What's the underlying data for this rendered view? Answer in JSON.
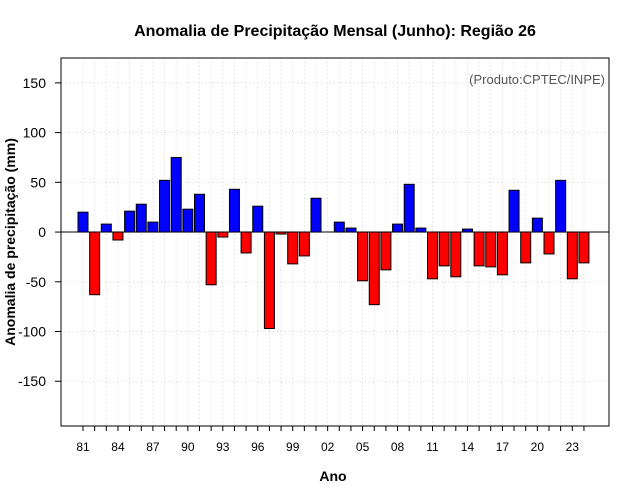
{
  "chart_data": {
    "type": "bar",
    "title": "Anomalia de Precipitação Mensal (Junho): Região 26",
    "xlabel": "Ano",
    "ylabel": "Anomalia de precipitação (mm)",
    "credit": "(Produto:CPTEC/INPE)",
    "ylim": [
      -195,
      175
    ],
    "yticks": [
      -150,
      -100,
      -50,
      0,
      50,
      100,
      150
    ],
    "grid": true,
    "positive_color": "#0000ff",
    "negative_color": "#ff0000",
    "tick_years": [
      "81",
      "84",
      "87",
      "90",
      "93",
      "96",
      "99",
      "02",
      "05",
      "08",
      "11",
      "14",
      "17",
      "20",
      "23"
    ],
    "categories": [
      1981,
      1982,
      1983,
      1984,
      1985,
      1986,
      1987,
      1988,
      1989,
      1990,
      1991,
      1992,
      1993,
      1994,
      1995,
      1996,
      1997,
      1998,
      1999,
      2000,
      2001,
      2002,
      2003,
      2004,
      2005,
      2006,
      2007,
      2008,
      2009,
      2010,
      2011,
      2012,
      2013,
      2014,
      2015,
      2016,
      2017,
      2018,
      2019,
      2020,
      2021,
      2022,
      2023,
      2024
    ],
    "values": [
      20,
      -63,
      8,
      -8,
      21,
      28,
      10,
      52,
      75,
      23,
      38,
      -53,
      -5,
      43,
      -21,
      26,
      -97,
      -2,
      -32,
      -24,
      34,
      0,
      10,
      4,
      -49,
      -73,
      -38,
      8,
      48,
      4,
      -47,
      -34,
      -45,
      3,
      -34,
      -35,
      -43,
      42,
      -31,
      14,
      -22,
      52,
      -47,
      -31
    ]
  }
}
